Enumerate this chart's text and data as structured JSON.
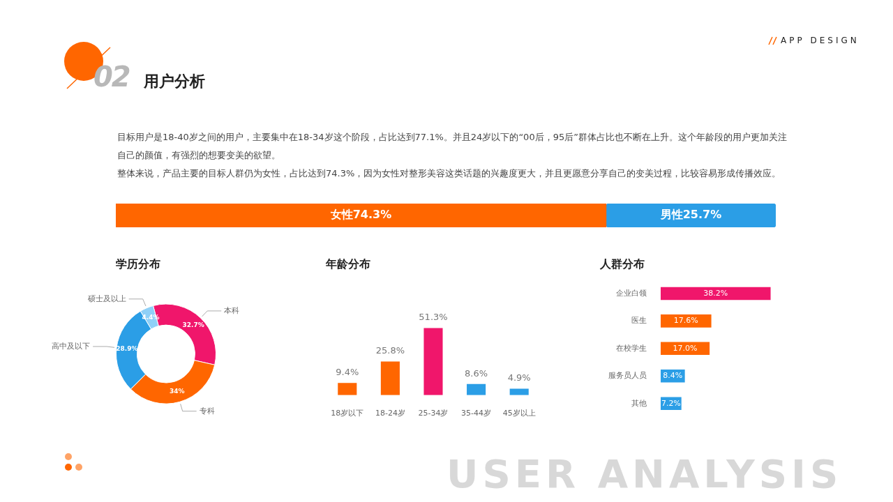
{
  "chart_data": [
    {
      "type": "other",
      "title": "用户分析",
      "annotations": [
        "02",
        "APP DESIGN",
        "目标用户是18-40岁之间的用户，主要集中在18-34岁这个阶段，占比达到77.1%。并且24岁以下的“00后，95后”群体占比也不断在上升。这个年龄段的用户更加关注自己的颜值，有强烈的想要变美的欲望。",
        "整体来说，产品主要的目标人群仍为女性，占比达到74.3%，因为女性对整形美容这类话题的兴趣度更大，并且更愿意分享自己的变美过程，比较容易形成传播效应。",
        "USER ANALYSIS"
      ]
    },
    {
      "type": "bar",
      "orientation": "horizontal",
      "stacked": true,
      "categories": [
        null
      ],
      "tick_labels": false,
      "series": [
        {
          "name": "女性",
          "color": "#ff6600",
          "values": [
            74.3
          ],
          "value_labels": [
            "74.3%"
          ]
        },
        {
          "name": "男性",
          "color": "#2b9ee6",
          "values": [
            25.7
          ],
          "value_labels": [
            "25.7%"
          ]
        }
      ]
    },
    {
      "type": "donut",
      "title": "学历分布",
      "categories": [
        "本科",
        "专科",
        "高中及以下",
        "硕士及以上"
      ],
      "values": [
        32.7,
        34,
        28.9,
        4.4
      ],
      "colors": [
        "#f0166b",
        "#ff6600",
        "#2b9ee6",
        "#8fd0f7"
      ],
      "value_labels": [
        "32.7%",
        "34%",
        "28.9%",
        "4.4%"
      ]
    },
    {
      "type": "bar",
      "title": "年龄分布",
      "categories": [
        "18岁以下",
        "18-24岁",
        "25-34岁",
        "35-44岁",
        "45岁以上"
      ],
      "values": [
        9.4,
        25.8,
        51.3,
        8.6,
        4.9
      ],
      "colors": [
        "#ff6600",
        "#ff6600",
        "#f0166b",
        "#2b9ee6",
        "#2b9ee6"
      ],
      "tick_labels": "x",
      "value_labels": [
        "9.4%",
        "25.8%",
        "51.3%",
        "8.6%",
        "4.9%"
      ]
    },
    {
      "type": "bar",
      "title": "人群分布",
      "orientation": "horizontal",
      "categories": [
        "企业白领",
        "医生",
        "在校学生",
        "服务员人员",
        "其他"
      ],
      "values": [
        38.2,
        17.6,
        17.0,
        8.4,
        7.2
      ],
      "colors": [
        "#f0166b",
        "#ff6600",
        "#ff6600",
        "#2b9ee6",
        "#2b9ee6"
      ],
      "tick_labels": "y",
      "value_labels": [
        "38.2%",
        "17.6%",
        "17.0%",
        "8.4%",
        "7.2%"
      ]
    }
  ]
}
